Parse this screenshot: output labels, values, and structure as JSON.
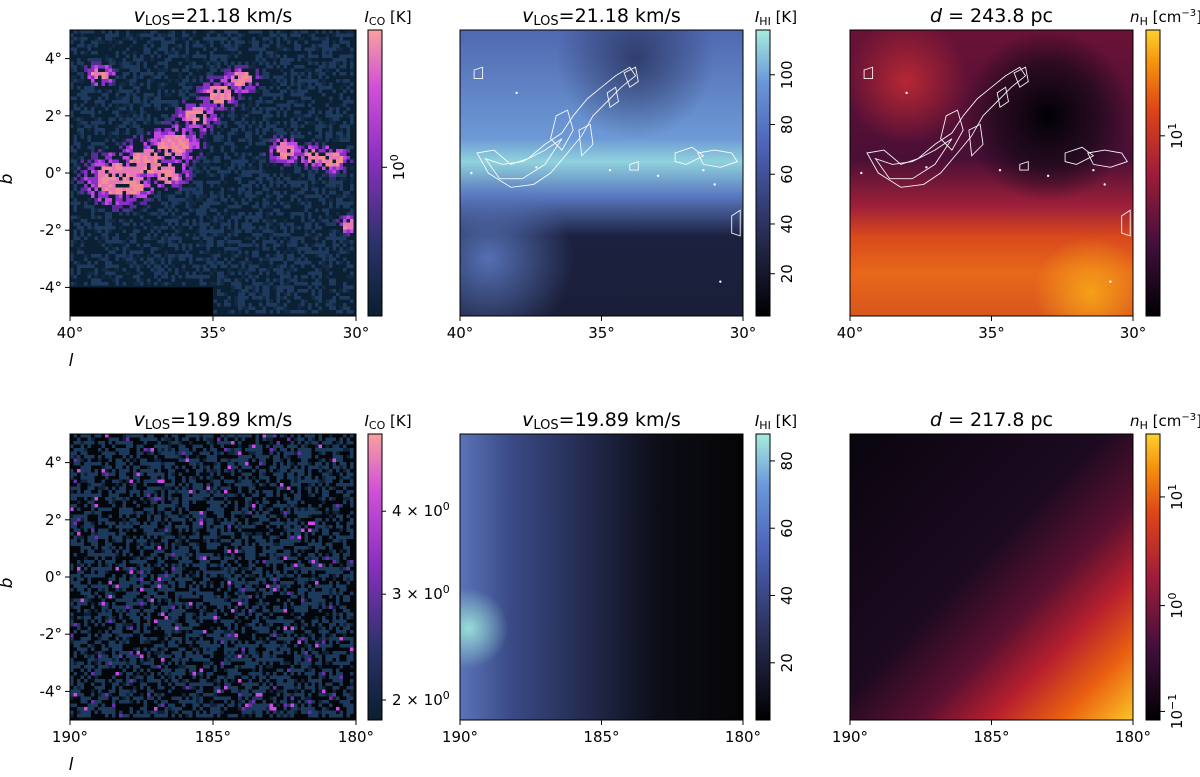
{
  "chart_data": [
    {
      "type": "heatmap",
      "title": "v_LOS=21.18 km/s",
      "title_main": "v",
      "title_sub": "LOS",
      "title_rest": "=21.18 km/s",
      "xlabel": "l",
      "ylabel": "b",
      "xticks": [
        "40°",
        "35°",
        "30°"
      ],
      "yticks": [
        "4°",
        "2°",
        "0°",
        "-2°",
        "-4°"
      ],
      "xlim": [
        40,
        30
      ],
      "ylim": [
        -5,
        5
      ],
      "colormap": "magma-like",
      "colorbar_label": "I_CO [K]",
      "colorbar_label_main": "I",
      "colorbar_label_sub": "CO",
      "colorbar_label_rest": " [K]",
      "colorbar_ticks": [
        "10^0"
      ],
      "colorbar_tick_base": "10",
      "colorbar_tick_exp": "0",
      "colorbar_scale": "log",
      "contours": false
    },
    {
      "type": "heatmap",
      "title": "v_LOS=21.18 km/s",
      "title_main": "v",
      "title_sub": "LOS",
      "title_rest": "=21.18 km/s",
      "xticks": [
        "40°",
        "35°",
        "30°"
      ],
      "xlim": [
        40,
        30
      ],
      "ylim": [
        -5,
        5
      ],
      "colormap": "blue-teal",
      "colorbar_label": "I_HI [K]",
      "colorbar_label_main": "I",
      "colorbar_label_sub": "HI",
      "colorbar_label_rest": " [K]",
      "colorbar_ticks": [
        "20",
        "40",
        "60",
        "80",
        "100"
      ],
      "colorbar_tick_values": [
        20,
        40,
        60,
        80,
        100
      ],
      "colorbar_range": [
        3,
        118
      ],
      "colorbar_scale": "linear",
      "contours": true
    },
    {
      "type": "heatmap",
      "title": "d = 243.8 pc",
      "title_main": "d",
      "title_rest": " = 243.8 pc",
      "xticks": [
        "40°",
        "35°",
        "30°"
      ],
      "xlim": [
        40,
        30
      ],
      "ylim": [
        -5,
        5
      ],
      "colormap": "inferno-like",
      "colorbar_label": "n_H [cm^-3]",
      "colorbar_label_main": "n",
      "colorbar_label_sub": "H",
      "colorbar_label_rest": " [cm",
      "colorbar_label_sup": "−3",
      "colorbar_label_end": "]",
      "colorbar_ticks": [
        "10^1"
      ],
      "colorbar_tick_base": "10",
      "colorbar_tick_exp": "1",
      "colorbar_scale": "log",
      "contours": true
    },
    {
      "type": "heatmap",
      "title": "v_LOS=19.89 km/s",
      "title_main": "v",
      "title_sub": "LOS",
      "title_rest": "=19.89 km/s",
      "xlabel": "l",
      "ylabel": "b",
      "xticks": [
        "190°",
        "185°",
        "180°"
      ],
      "yticks": [
        "4°",
        "2°",
        "0°",
        "-2°",
        "-4°"
      ],
      "xlim": [
        190,
        180
      ],
      "ylim": [
        -5,
        5
      ],
      "colormap": "magma-like",
      "colorbar_label": "I_CO [K]",
      "colorbar_label_main": "I",
      "colorbar_label_sub": "CO",
      "colorbar_label_rest": " [K]",
      "colorbar_ticks": [
        "4 × 10^0",
        "3 × 10^0",
        "2 × 10^0"
      ],
      "colorbar_tick_coefs": [
        "4 × 10",
        "3 × 10",
        "2 × 10"
      ],
      "colorbar_tick_exp": "0",
      "colorbar_scale": "log",
      "contours": false
    },
    {
      "type": "heatmap",
      "title": "v_LOS=19.89 km/s",
      "title_main": "v",
      "title_sub": "LOS",
      "title_rest": "=19.89 km/s",
      "xticks": [
        "190°",
        "185°",
        "180°"
      ],
      "xlim": [
        190,
        180
      ],
      "ylim": [
        -5,
        5
      ],
      "colormap": "blue-teal",
      "colorbar_label": "I_HI [K]",
      "colorbar_label_main": "I",
      "colorbar_label_sub": "HI",
      "colorbar_label_rest": " [K]",
      "colorbar_ticks": [
        "20",
        "40",
        "60",
        "80"
      ],
      "colorbar_tick_values": [
        20,
        40,
        60,
        80
      ],
      "colorbar_range": [
        3,
        88
      ],
      "colorbar_scale": "linear",
      "contours": false
    },
    {
      "type": "heatmap",
      "title": "d = 217.8 pc",
      "title_main": "d",
      "title_rest": " = 217.8 pc",
      "xticks": [
        "190°",
        "185°",
        "180°"
      ],
      "xlim": [
        190,
        180
      ],
      "ylim": [
        -5,
        5
      ],
      "colormap": "inferno-like",
      "colorbar_label": "n_H [cm^-3]",
      "colorbar_label_main": "n",
      "colorbar_label_sub": "H",
      "colorbar_label_rest": " [cm",
      "colorbar_label_sup": "−3",
      "colorbar_label_end": "]",
      "colorbar_ticks": [
        "10^1",
        "10^0",
        "10^-1"
      ],
      "colorbar_tick_exps": [
        "1",
        "0",
        "−1"
      ],
      "colorbar_tick_base": "10",
      "colorbar_scale": "log",
      "contours": false
    }
  ],
  "colors": {
    "co_cmap": [
      "#0a1e30",
      "#1e3a5c",
      "#7a2fb0",
      "#c040e0",
      "#f08090",
      "#f8a0a0"
    ],
    "hi_cmap": [
      "#000000",
      "#2a2f58",
      "#4d64b8",
      "#6a98d8",
      "#9ce0dc"
    ],
    "nh_cmap": [
      "#000004",
      "#3b0f3c",
      "#8c1a3a",
      "#d03a20",
      "#f07a10",
      "#fcc020"
    ],
    "contour": "#ffffff"
  }
}
